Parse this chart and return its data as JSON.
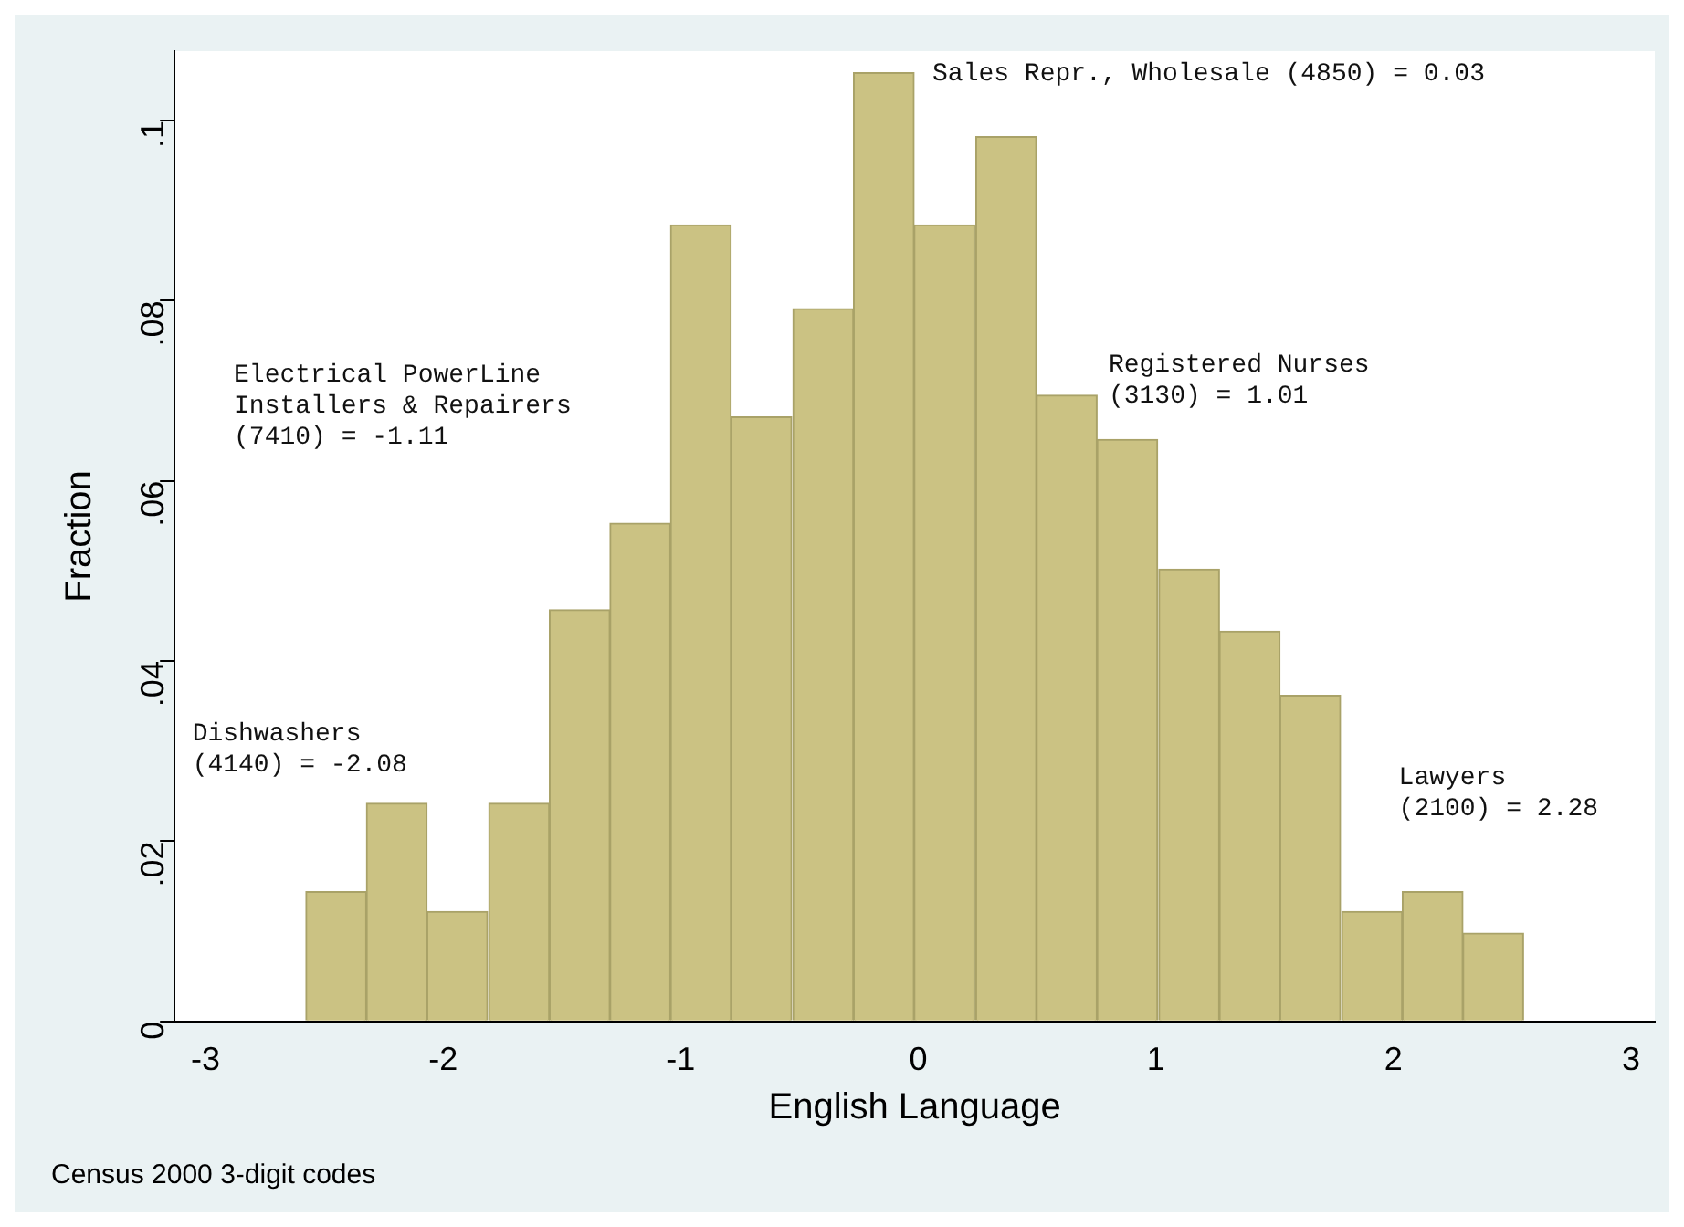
{
  "chart_data": {
    "type": "histogram",
    "xlabel": "English Language",
    "ylabel": "Fraction",
    "bins": [
      -2.58,
      -2.32,
      -2.07,
      -1.81,
      -1.55,
      -1.3,
      -1.04,
      -0.79,
      -0.53,
      -0.27,
      -0.02,
      0.24,
      0.5,
      0.75,
      1.01,
      1.27,
      1.52,
      1.78,
      2.04,
      2.29,
      2.55
    ],
    "values": [
      0.0144,
      0.0242,
      0.0122,
      0.0242,
      0.0457,
      0.0553,
      0.0884,
      0.0671,
      0.0791,
      0.1053,
      0.0884,
      0.0982,
      0.0695,
      0.0646,
      0.0502,
      0.0433,
      0.0362,
      0.0122,
      0.0144,
      0.0098
    ],
    "color": "#cbc283",
    "xlim": [
      -3.13,
      3.1
    ],
    "xticks": [
      -3,
      -2,
      -1,
      0,
      1,
      2,
      3
    ],
    "ylim": [
      0,
      0.1077
    ],
    "yticks": [
      {
        "value": 0,
        "label": "0"
      },
      {
        "value": 0.02,
        "label": ".02"
      },
      {
        "value": 0.04,
        "label": ".04"
      },
      {
        "value": 0.06,
        "label": ".06"
      },
      {
        "value": 0.08,
        "label": ".08"
      },
      {
        "value": 0.1,
        "label": ".1"
      }
    ],
    "grid": false,
    "legend": false,
    "annotations": [
      "Sales Repr., Wholesale (4850) = 0.03",
      "Registered Nurses\n(3130) = 1.01",
      "Electrical PowerLine\nInstallers & Repairers\n(7410) = -1.11",
      "Dishwashers\n(4140) = -2.08",
      "Lawyers\n(2100) = 2.28",
      "Census 2000 3-digit codes"
    ]
  }
}
